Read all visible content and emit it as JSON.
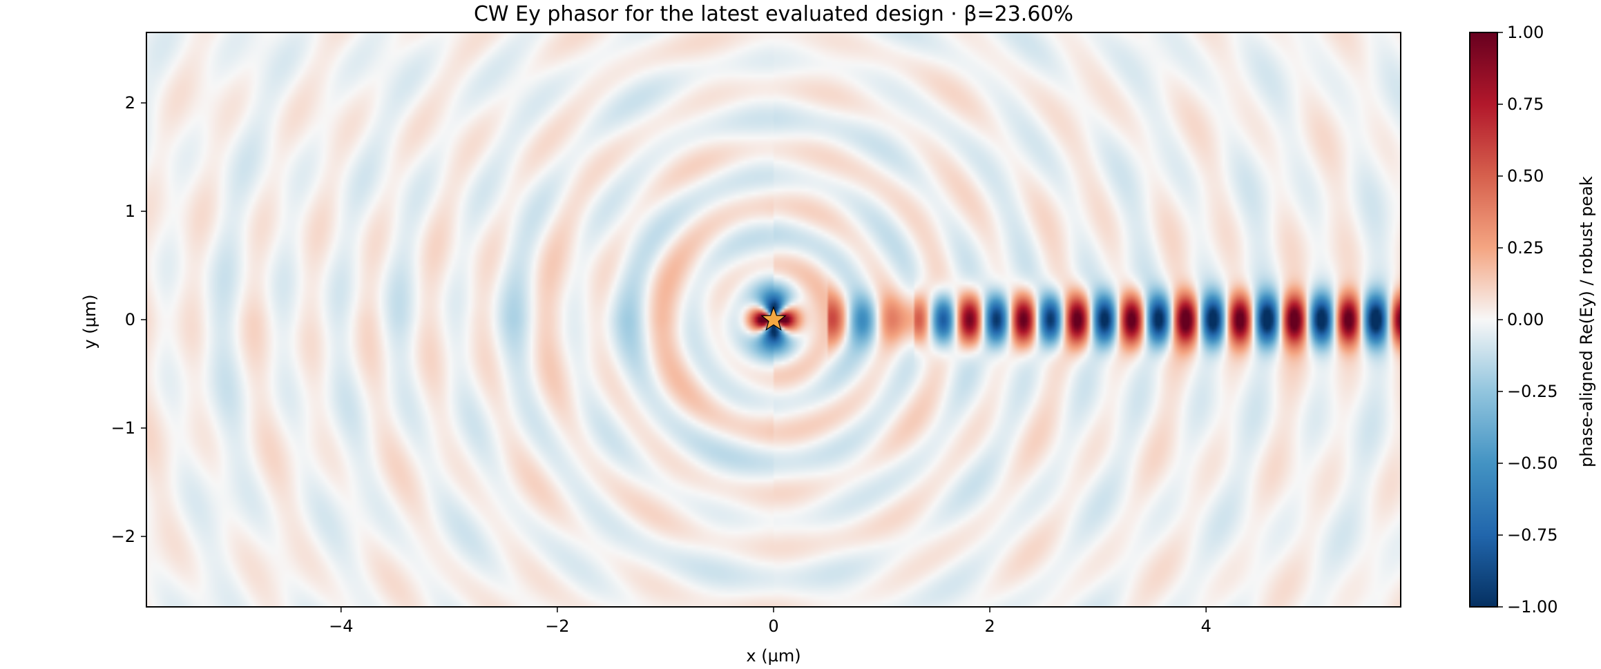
{
  "chart_data": {
    "type": "heatmap",
    "title": "CW Ey phasor for the latest evaluated design · β=23.60%",
    "xlabel": "x (µm)",
    "ylabel": "y (µm)",
    "xlim": [
      -5.8,
      5.8
    ],
    "ylim": [
      -2.65,
      2.65
    ],
    "x_ticks": [
      -4,
      -2,
      0,
      2,
      4
    ],
    "x_tick_labels": [
      "−4",
      "−2",
      "0",
      "2",
      "4"
    ],
    "y_ticks": [
      -2,
      -1,
      0,
      1,
      2
    ],
    "y_tick_labels": [
      "−2",
      "−1",
      "0",
      "1",
      "2"
    ],
    "colormap": "RdBu_r",
    "colorbar": {
      "label": "phase-aligned Re(Ey) / robust peak",
      "range": [
        -1.0,
        1.0
      ],
      "ticks": [
        -1.0,
        -0.75,
        -0.5,
        -0.25,
        0.0,
        0.25,
        0.5,
        0.75,
        1.0
      ],
      "tick_labels": [
        "−1.00",
        "−0.75",
        "−0.50",
        "−0.25",
        "0.00",
        "0.25",
        "0.50",
        "0.75",
        "1.00"
      ],
      "colors": [
        "#053061",
        "#2166ac",
        "#4393c3",
        "#92c5de",
        "#f7f7f7",
        "#f4a582",
        "#d6604d",
        "#b2182b",
        "#67001f"
      ]
    },
    "source_marker": {
      "shape": "star",
      "x": 0.0,
      "y": 0.0,
      "color": "#f4a742"
    },
    "waveguide": {
      "y_half_width": 0.26,
      "wavelength": 0.5,
      "x_start": 1.3
    },
    "grid": false
  }
}
